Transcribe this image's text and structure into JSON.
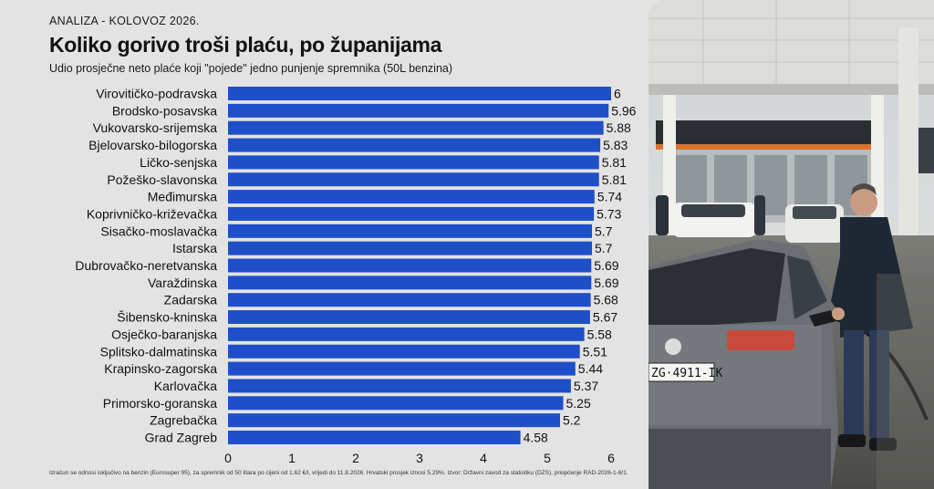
{
  "kicker": "ANALIZA - KOLOVOZ 2026.",
  "title": "Koliko gorivo troši plaću, po županijama",
  "subtitle": "Udio prosječne neto plaće koji \"pojede\" jedno punjenje spremnika (50L benzina)",
  "footnote": "Izračun se odnosi isključivo na benzin (Eurosuper 95), za spremnik od 50 litara po cijeni od 1,62 €/l, vrijedi do 11.8.2026. Hrvatski prosjek iznosi 5,29%. Izvor: Državni zavod za statistiku (DZS), priopćenje RAD-2026-1-6/1.",
  "colors": {
    "bar": "#1e4fc8",
    "background": "#e3e3e3"
  },
  "chart_data": {
    "type": "bar",
    "orientation": "horizontal",
    "categories": [
      "Virovitičko-podravska",
      "Brodsko-posavska",
      "Vukovarsko-srijemska",
      "Bjelovarsko-bilogorska",
      "Ličko-senjska",
      "Požeško-slavonska",
      "Međimurska",
      "Koprivničko-križevačka",
      "Sisačko-moslavačka",
      "Istarska",
      "Dubrovačko-neretvanska",
      "Varaždinska",
      "Zadarska",
      "Šibensko-kninska",
      "Osječko-baranjska",
      "Splitsko-dalmatinska",
      "Krapinsko-zagorska",
      "Karlovačka",
      "Primorsko-goranska",
      "Zagrebačka",
      "Grad Zagreb"
    ],
    "values": [
      6,
      5.96,
      5.88,
      5.83,
      5.81,
      5.81,
      5.74,
      5.73,
      5.7,
      5.7,
      5.69,
      5.69,
      5.68,
      5.67,
      5.58,
      5.51,
      5.44,
      5.37,
      5.25,
      5.2,
      4.58
    ],
    "value_labels": [
      "6",
      "5.96",
      "5.88",
      "5.83",
      "5.81",
      "5.81",
      "5.74",
      "5.73",
      "5.7",
      "5.7",
      "5.69",
      "5.69",
      "5.68",
      "5.67",
      "5.58",
      "5.51",
      "5.44",
      "5.37",
      "5.25",
      "5.2",
      "4.58"
    ],
    "xticks": [
      "0",
      "1",
      "2",
      "3",
      "4",
      "5",
      "6"
    ],
    "xlim": [
      0,
      6
    ],
    "grid": false
  },
  "photo": {
    "plate_front": "ZG·4911-IK",
    "brand_icon": "vw-logo-icon"
  }
}
